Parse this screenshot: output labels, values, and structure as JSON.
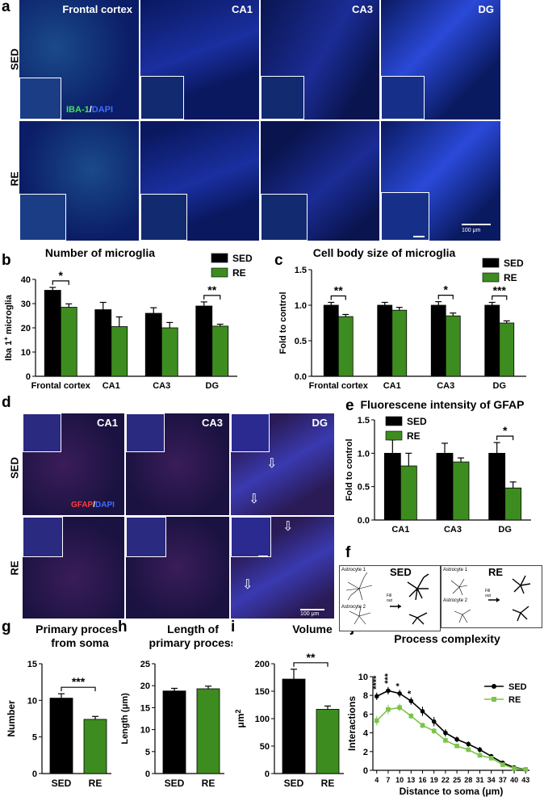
{
  "panels": {
    "a": "a",
    "b": "b",
    "c": "c",
    "d": "d",
    "e": "e",
    "f": "f",
    "g": "g",
    "h": "h",
    "i": "i",
    "j": "j"
  },
  "panel_a": {
    "tiles": [
      "Frontal cortex",
      "CA1",
      "CA3",
      "DG"
    ],
    "rows": [
      "SED",
      "RE"
    ],
    "stain_green": "IBA-1",
    "stain_sep": "/",
    "stain_blue": "DAPI",
    "scale": "100 μm"
  },
  "panel_d": {
    "tiles": [
      "CA1",
      "CA3",
      "DG"
    ],
    "rows": [
      "SED",
      "RE"
    ],
    "stain_red": "GFAP",
    "stain_sep": "/",
    "stain_blue": "DAPI",
    "scale": "100 μm"
  },
  "panel_f": {
    "sed_title": "SED",
    "re_title": "RE",
    "astro1": "Astrocyte 1",
    "astro2": "Astrocyte 2",
    "fill1": "Fill",
    "fill2": "out"
  },
  "colors": {
    "sed": "#000000",
    "re": "#3d8c1f",
    "iba": "#3fe35a",
    "gfap": "#ff3b3b",
    "dapi": "#3f6dff"
  },
  "chart_data": [
    {
      "id": "b",
      "type": "bar",
      "title": "Number of microglia",
      "ylabel_main": "Iba 1",
      "ylabel_sup": "+",
      "ylabel_rest": " microglia",
      "categories": [
        "Frontal cortex",
        "CA1",
        "CA3",
        "DG"
      ],
      "series": [
        {
          "name": "SED",
          "values": [
            35.5,
            27.5,
            26,
            29
          ],
          "err": [
            1.2,
            3,
            2.3,
            1.7
          ]
        },
        {
          "name": "RE",
          "values": [
            28.5,
            20.5,
            20,
            20.7
          ],
          "err": [
            1.4,
            4,
            2.2,
            0.8
          ]
        }
      ],
      "ylim": [
        0,
        40
      ],
      "yticks": [
        0,
        10,
        20,
        30,
        40
      ],
      "sig": [
        {
          "cat": 0,
          "label": "*"
        },
        {
          "cat": 3,
          "label": "**"
        }
      ],
      "legend": "top-right"
    },
    {
      "id": "c",
      "type": "bar",
      "title": "Cell body size of microglia",
      "ylabel": "Fold to control",
      "categories": [
        "Frontal cortex",
        "CA1",
        "CA3",
        "DG"
      ],
      "series": [
        {
          "name": "SED",
          "values": [
            1.0,
            1.0,
            1.0,
            1.0
          ],
          "err": [
            0.04,
            0.04,
            0.05,
            0.04
          ]
        },
        {
          "name": "RE",
          "values": [
            0.84,
            0.93,
            0.85,
            0.75
          ],
          "err": [
            0.03,
            0.04,
            0.04,
            0.03
          ]
        }
      ],
      "ylim": [
        0,
        1.5
      ],
      "yticks": [
        "0.0",
        "0.5",
        "1.0",
        "1.5"
      ],
      "sig": [
        {
          "cat": 0,
          "label": "**"
        },
        {
          "cat": 2,
          "label": "*"
        },
        {
          "cat": 3,
          "label": "***"
        }
      ],
      "legend": "top-right"
    },
    {
      "id": "e",
      "type": "bar",
      "title": "Fluorescene intensity of GFAP",
      "ylabel": "Fold to control",
      "categories": [
        "CA1",
        "CA3",
        "DG"
      ],
      "series": [
        {
          "name": "SED",
          "values": [
            1.0,
            1.0,
            1.0
          ],
          "err": [
            0.2,
            0.15,
            0.16
          ]
        },
        {
          "name": "RE",
          "values": [
            0.81,
            0.87,
            0.48
          ],
          "err": [
            0.19,
            0.06,
            0.09
          ]
        }
      ],
      "ylim": [
        0,
        1.5
      ],
      "yticks": [
        "0.0",
        "0.5",
        "1.0",
        "1.5"
      ],
      "sig": [
        {
          "cat": 2,
          "label": "*"
        }
      ],
      "legend": "top-left"
    },
    {
      "id": "g",
      "type": "bar",
      "title1": "Primary process",
      "title2": "from soma",
      "ylabel": "Number",
      "categories": [
        "SED",
        "RE"
      ],
      "values": [
        10.3,
        7.4
      ],
      "err": [
        0.6,
        0.4
      ],
      "ylim": [
        0,
        15
      ],
      "yticks": [
        0,
        5,
        10,
        15
      ],
      "sig": "***"
    },
    {
      "id": "h",
      "type": "bar",
      "title1": "Length of",
      "title2": "primary process",
      "ylabel": "Length (μm)",
      "categories": [
        "SED",
        "RE"
      ],
      "values": [
        18.8,
        19.3
      ],
      "err": [
        0.6,
        0.6
      ],
      "ylim": [
        0,
        25
      ],
      "yticks": [
        0,
        5,
        10,
        15,
        20,
        25
      ]
    },
    {
      "id": "i",
      "type": "bar",
      "title1": "Volume",
      "ylabel_main": "μm",
      "ylabel_sup": "2",
      "categories": [
        "SED",
        "RE"
      ],
      "values": [
        172,
        117
      ],
      "err": [
        18,
        6
      ],
      "ylim": [
        0,
        200
      ],
      "yticks": [
        0,
        50,
        100,
        150,
        200
      ],
      "sig": "**"
    },
    {
      "id": "j",
      "type": "line",
      "title": "Process complexity",
      "xlabel": "Distance to soma (μm)",
      "ylabel": "Interactions",
      "x": [
        4,
        7,
        10,
        13,
        16,
        19,
        22,
        25,
        28,
        31,
        34,
        37,
        40,
        43
      ],
      "xticks": [
        4,
        7,
        10,
        13,
        16,
        19,
        22,
        25,
        28,
        31,
        34,
        37,
        40,
        43
      ],
      "series": [
        {
          "name": "SED",
          "values": [
            7.9,
            8.5,
            8.2,
            7.4,
            6.3,
            5.2,
            4.0,
            3.3,
            2.8,
            2.2,
            1.5,
            0.8,
            0.3,
            0.1
          ],
          "err": [
            0.4,
            0.4,
            0.4,
            0.4,
            0.5,
            0.5,
            0.4,
            0.3,
            0.3,
            0.3,
            0.2,
            0.2,
            0.1,
            0.1
          ]
        },
        {
          "name": "RE",
          "values": [
            5.3,
            6.5,
            6.7,
            5.8,
            4.8,
            4.2,
            3.2,
            2.6,
            2.2,
            1.6,
            1.3,
            0.6,
            0.2,
            0.1
          ],
          "err": [
            0.5,
            0.5,
            0.4,
            0.3,
            0.3,
            0.3,
            0.3,
            0.2,
            0.2,
            0.2,
            0.2,
            0.1,
            0.1,
            0.1
          ]
        }
      ],
      "ylim": [
        0,
        10
      ],
      "yticks": [
        0,
        2,
        4,
        6,
        8,
        10
      ],
      "sig": [
        {
          "x": 4,
          "label": "****"
        },
        {
          "x": 7,
          "label": "***"
        },
        {
          "x": 10,
          "label": "*"
        },
        {
          "x": 13,
          "label": "*"
        }
      ],
      "legend": "right"
    }
  ]
}
